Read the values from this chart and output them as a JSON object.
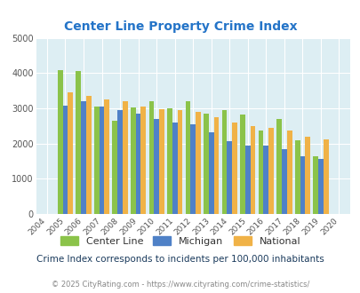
{
  "title": "Center Line Property Crime Index",
  "years": [
    2004,
    2005,
    2006,
    2007,
    2008,
    2009,
    2010,
    2011,
    2012,
    2013,
    2014,
    2015,
    2016,
    2017,
    2018,
    2019,
    2020
  ],
  "center_line": [
    0,
    4080,
    4060,
    3060,
    2660,
    3030,
    3200,
    3010,
    3210,
    2840,
    2940,
    2820,
    2360,
    2710,
    2100,
    1640,
    0
  ],
  "michigan": [
    0,
    3090,
    3200,
    3060,
    2960,
    2840,
    2700,
    2610,
    2550,
    2330,
    2070,
    1930,
    1930,
    1830,
    1640,
    1570,
    0
  ],
  "national": [
    0,
    3450,
    3350,
    3250,
    3210,
    3060,
    2980,
    2950,
    2890,
    2760,
    2600,
    2500,
    2450,
    2370,
    2200,
    2130,
    0
  ],
  "center_line_color": "#8bc34a",
  "michigan_color": "#4f81c7",
  "national_color": "#f0b247",
  "background_color": "#ddeef3",
  "ylim": [
    0,
    5000
  ],
  "yticks": [
    0,
    1000,
    2000,
    3000,
    4000,
    5000
  ],
  "subtitle": "Crime Index corresponds to incidents per 100,000 inhabitants",
  "footer": "© 2025 CityRating.com - https://www.cityrating.com/crime-statistics/",
  "title_color": "#2474c8",
  "subtitle_color": "#1a3a5c",
  "footer_color": "#888888",
  "legend_labels": [
    "Center Line",
    "Michigan",
    "National"
  ],
  "legend_label_color": "#333333"
}
